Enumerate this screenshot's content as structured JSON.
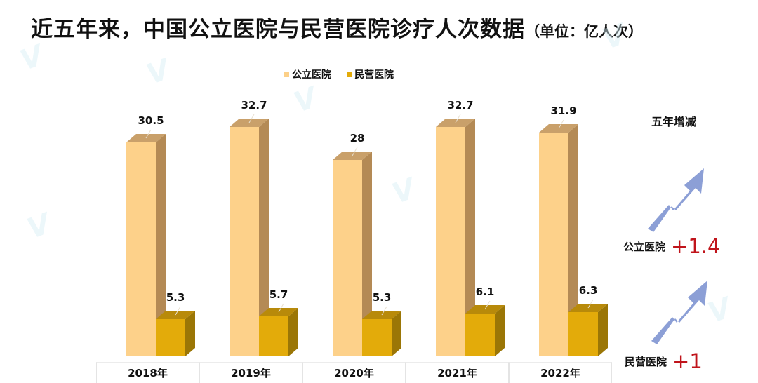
{
  "title": {
    "main": "近五年来，中国公立医院与民营医院诊疗人次数据",
    "unit": "（单位：亿人次）"
  },
  "legend": [
    {
      "label": "公立医院",
      "color": "#fcd088"
    },
    {
      "label": "民营医院",
      "color": "#e3ab0a"
    }
  ],
  "colors": {
    "public_front": "#fdd18a",
    "public_side": "#b48a55",
    "public_top": "#c9a06a",
    "private_front": "#e3ab0a",
    "private_side": "#9b7606",
    "private_top": "#b88a0a",
    "arrow": "#8c9fd6",
    "delta": "#c0141b"
  },
  "side_panel": {
    "title": "五年增减",
    "items": [
      {
        "name": "公立医院",
        "value": "+1.4"
      },
      {
        "name": "民营医院",
        "value": "+1"
      }
    ]
  },
  "chart_data": {
    "type": "bar",
    "title": "近五年来，中国公立医院与民营医院诊疗人次数据（单位：亿人次）",
    "xlabel": "",
    "ylabel": "亿人次",
    "categories": [
      "2018年",
      "2019年",
      "2020年",
      "2021年",
      "2022年"
    ],
    "series": [
      {
        "name": "公立医院",
        "values": [
          30.5,
          32.7,
          28,
          32.7,
          31.9
        ]
      },
      {
        "name": "民营医院",
        "values": [
          5.3,
          5.7,
          5.3,
          6.1,
          6.3
        ]
      }
    ],
    "value_labels": {
      "公立医院": [
        "30.5",
        "32.7",
        "28",
        "32.7",
        "31.9"
      ],
      "民营医院": [
        "5.3",
        "5.7",
        "5.3",
        "6.1",
        "6.3"
      ]
    },
    "ylim": [
      0,
      35
    ],
    "grid": false,
    "legend_position": "top",
    "style": "3d-column",
    "annotations": [
      {
        "text": "五年增减"
      },
      {
        "text": "公立医院 +1.4"
      },
      {
        "text": "民营医院 +1"
      }
    ]
  }
}
